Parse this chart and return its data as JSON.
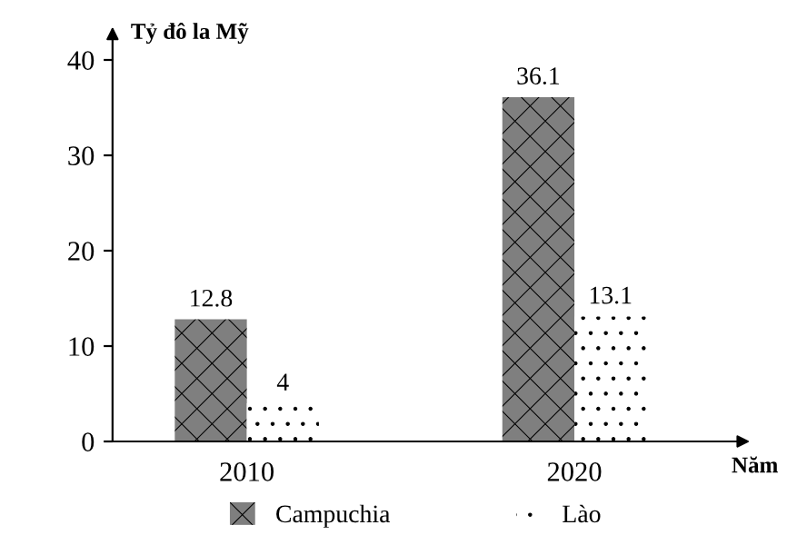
{
  "chart_data": {
    "type": "bar",
    "ylabel": "Tỷ đô la Mỹ",
    "xlabel": "Năm",
    "categories": [
      "2010",
      "2020"
    ],
    "series": [
      {
        "name": "Campuchia",
        "color": "#7f7f7f",
        "values": [
          12.8,
          36.1
        ]
      },
      {
        "name": "Lào",
        "color": "#ffffff",
        "values": [
          4,
          13.1
        ]
      }
    ],
    "ylim": [
      0,
      40
    ],
    "yticks": [
      0,
      10,
      20,
      30,
      40
    ],
    "data_labels": true,
    "grid": false,
    "legend": "bottom"
  }
}
